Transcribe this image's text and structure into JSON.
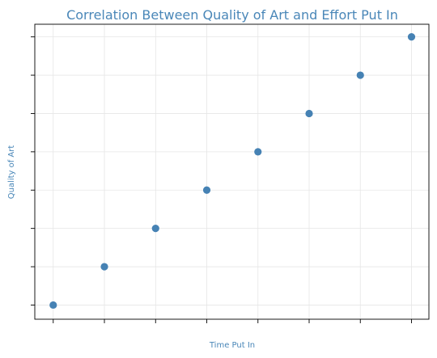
{
  "colors": {
    "accent": "#4a87b8",
    "point": "#4682b4",
    "grid": "#e6e6e6",
    "frame": "#000000"
  },
  "chart_data": {
    "type": "scatter",
    "title": "Correlation Between Quality of Art and Effort Put In",
    "xlabel": "Time Put In",
    "ylabel": "Quality of Art",
    "x": [
      1,
      2,
      3,
      4,
      5,
      6,
      7,
      8
    ],
    "y": [
      1,
      2,
      3,
      4,
      5,
      6,
      7,
      8
    ],
    "xlim": [
      0.64,
      8.34
    ],
    "ylim": [
      0.63,
      8.33
    ],
    "x_ticks": [
      1,
      2,
      3,
      4,
      5,
      6,
      7,
      8
    ],
    "y_ticks": [
      1,
      2,
      3,
      4,
      5,
      6,
      7,
      8
    ],
    "tick_labels_shown": false,
    "grid": true,
    "legend": "none"
  }
}
